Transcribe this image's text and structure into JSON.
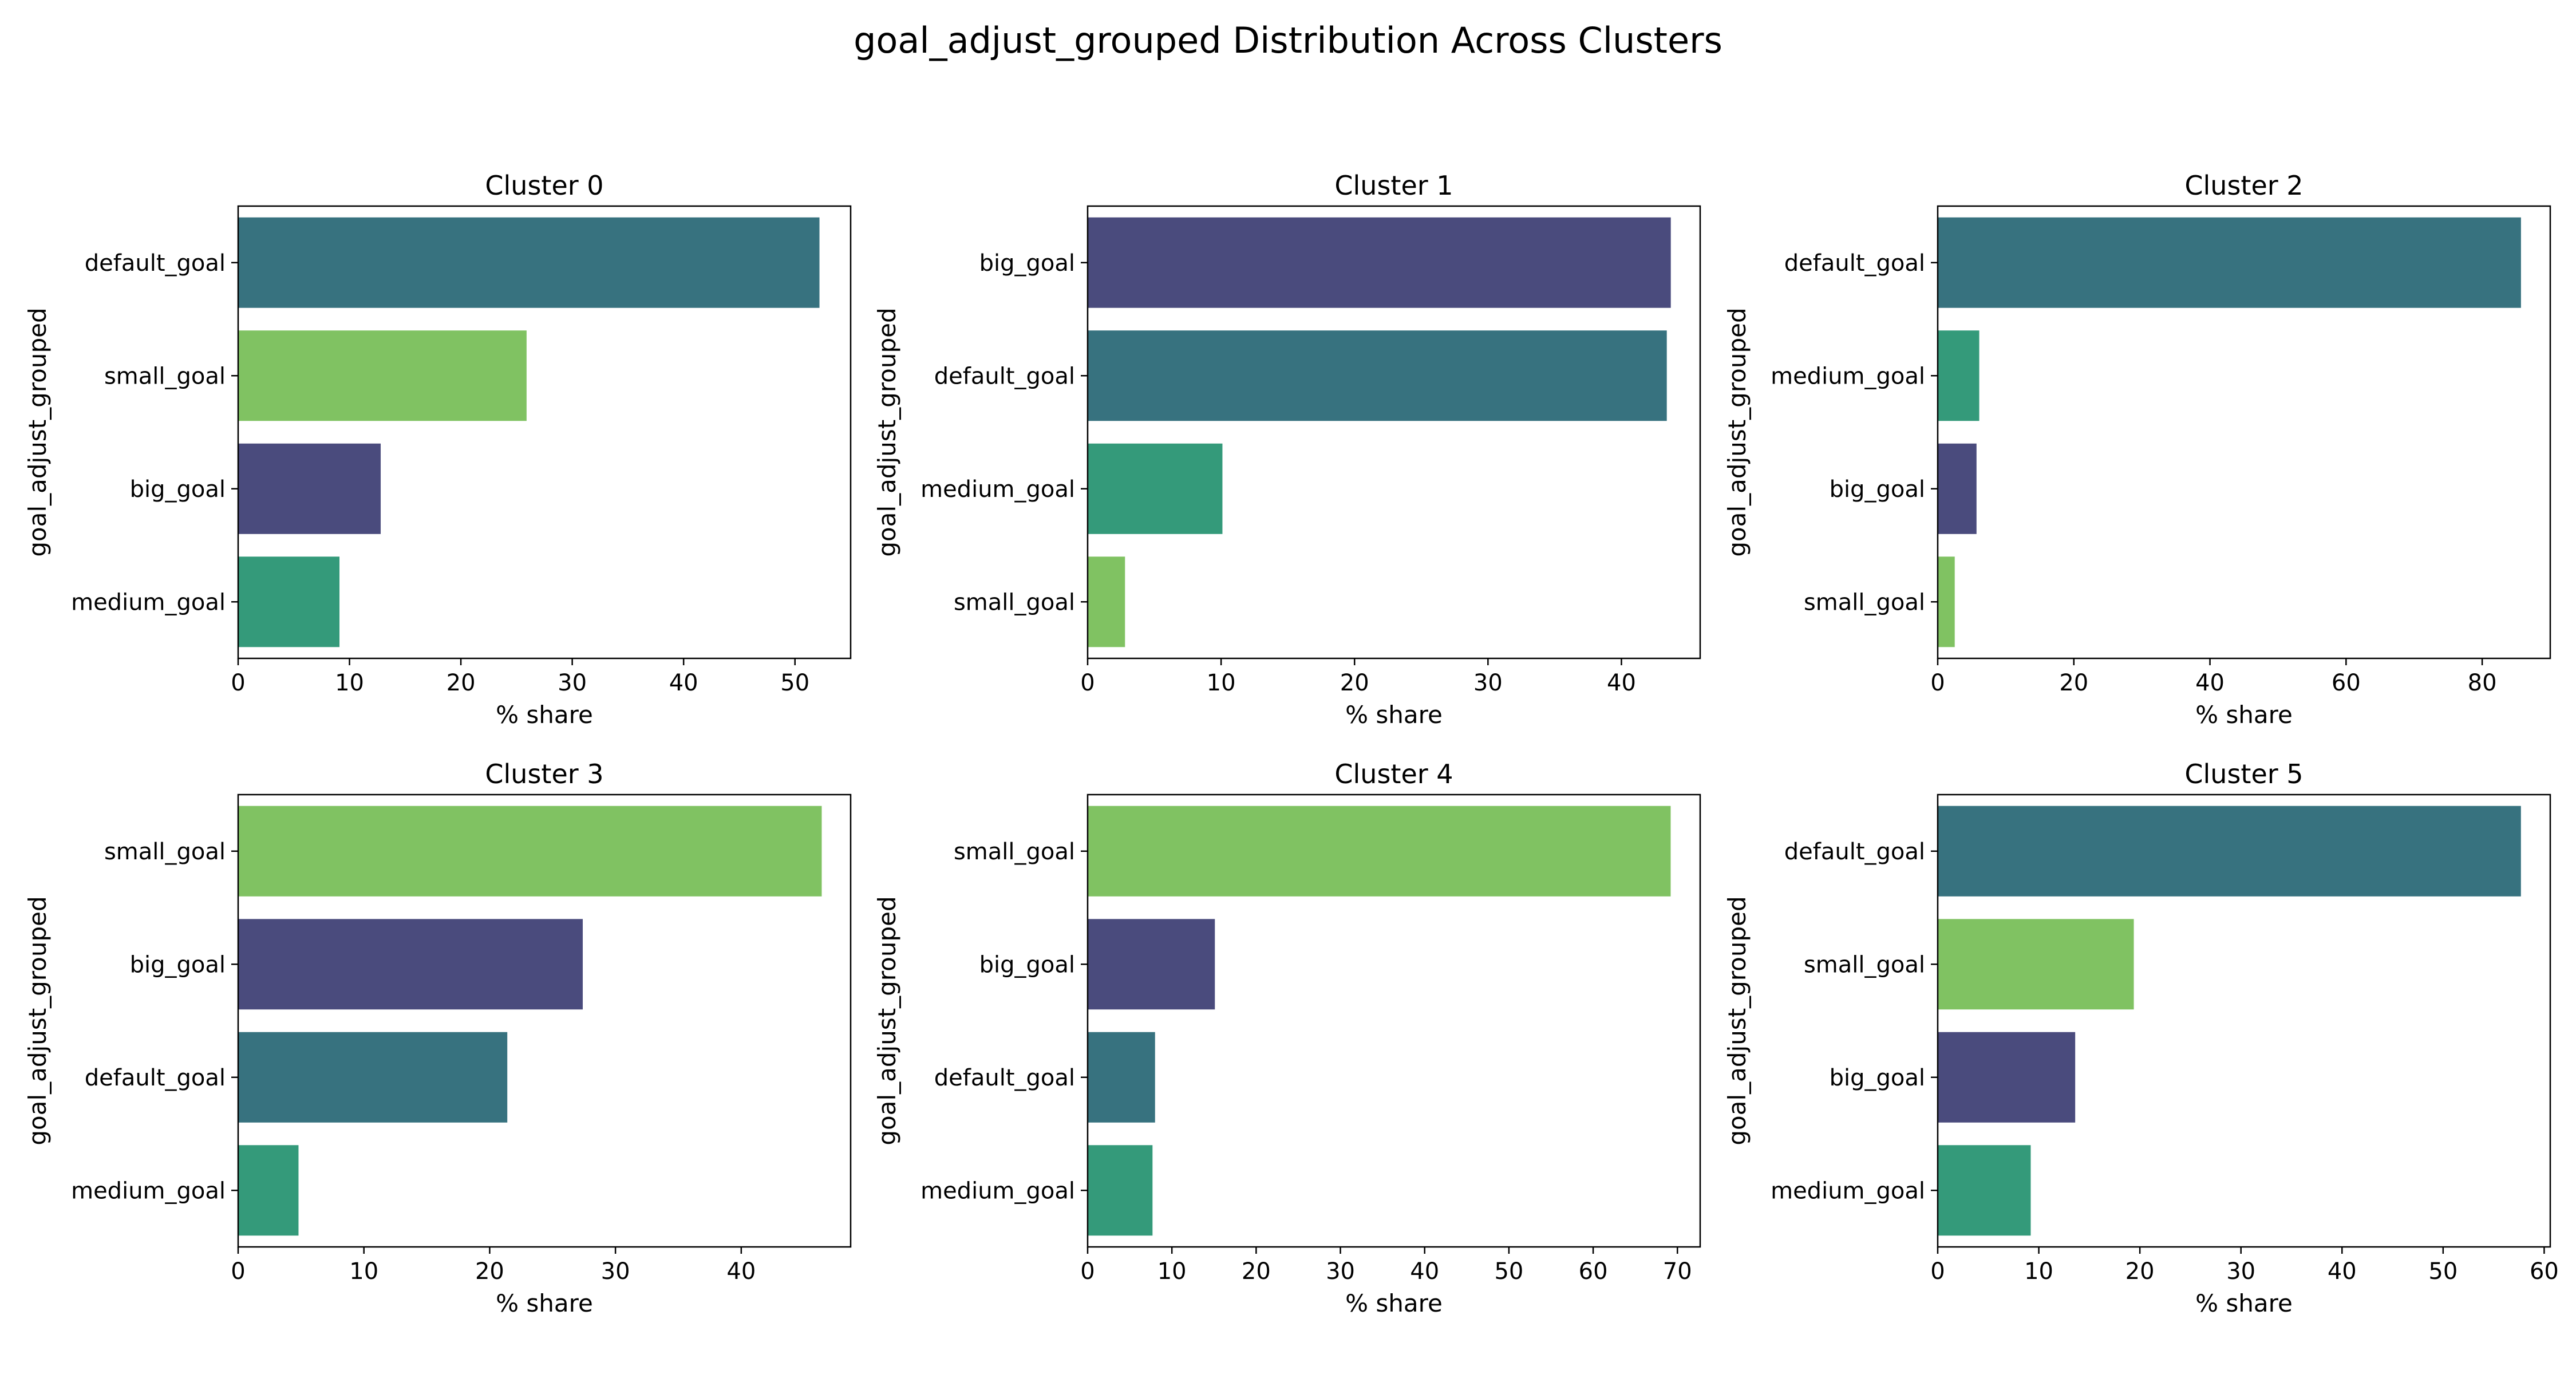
{
  "figure": {
    "title": "goal_adjust_grouped Distribution Across Clusters"
  },
  "colors": {
    "big_goal": "#4a4b7d",
    "default_goal": "#37727f",
    "medium_goal": "#349a7a",
    "small_goal": "#80c262",
    "axis": "#000000",
    "background": "#ffffff"
  },
  "chart_data": [
    {
      "type": "bar",
      "orientation": "horizontal",
      "title": "Cluster 0",
      "xlabel": "% share",
      "ylabel": "goal_adjust_grouped",
      "categories": [
        "default_goal",
        "small_goal",
        "big_goal",
        "medium_goal"
      ],
      "values": [
        52.2,
        25.9,
        12.8,
        9.1
      ],
      "xlim": [
        0,
        55
      ],
      "xticks": [
        0,
        10,
        20,
        30,
        40,
        50
      ],
      "grid": false
    },
    {
      "type": "bar",
      "orientation": "horizontal",
      "title": "Cluster 1",
      "xlabel": "% share",
      "ylabel": "goal_adjust_grouped",
      "categories": [
        "big_goal",
        "default_goal",
        "medium_goal",
        "small_goal"
      ],
      "values": [
        43.7,
        43.4,
        10.1,
        2.8
      ],
      "xlim": [
        0,
        45.9
      ],
      "xticks": [
        0,
        10,
        20,
        30,
        40
      ],
      "grid": false
    },
    {
      "type": "bar",
      "orientation": "horizontal",
      "title": "Cluster 2",
      "xlabel": "% share",
      "ylabel": "goal_adjust_grouped",
      "categories": [
        "default_goal",
        "medium_goal",
        "big_goal",
        "small_goal"
      ],
      "values": [
        85.7,
        6.1,
        5.7,
        2.5
      ],
      "xlim": [
        0,
        90
      ],
      "xticks": [
        0,
        20,
        40,
        60,
        80
      ],
      "grid": false
    },
    {
      "type": "bar",
      "orientation": "horizontal",
      "title": "Cluster 3",
      "xlabel": "% share",
      "ylabel": "goal_adjust_grouped",
      "categories": [
        "small_goal",
        "big_goal",
        "default_goal",
        "medium_goal"
      ],
      "values": [
        46.4,
        27.4,
        21.4,
        4.8
      ],
      "xlim": [
        0,
        48.7
      ],
      "xticks": [
        0,
        10,
        20,
        30,
        40
      ],
      "grid": false
    },
    {
      "type": "bar",
      "orientation": "horizontal",
      "title": "Cluster 4",
      "xlabel": "% share",
      "ylabel": "goal_adjust_grouped",
      "categories": [
        "small_goal",
        "big_goal",
        "default_goal",
        "medium_goal"
      ],
      "values": [
        69.2,
        15.1,
        8.0,
        7.7
      ],
      "xlim": [
        0,
        72.7
      ],
      "xticks": [
        0,
        10,
        20,
        30,
        40,
        50,
        60,
        70
      ],
      "grid": false
    },
    {
      "type": "bar",
      "orientation": "horizontal",
      "title": "Cluster 5",
      "xlabel": "% share",
      "ylabel": "goal_adjust_grouped",
      "categories": [
        "default_goal",
        "small_goal",
        "big_goal",
        "medium_goal"
      ],
      "values": [
        57.7,
        19.4,
        13.6,
        9.2
      ],
      "xlim": [
        0,
        60.6
      ],
      "xticks": [
        0,
        10,
        20,
        30,
        40,
        50,
        60
      ],
      "grid": false
    }
  ]
}
